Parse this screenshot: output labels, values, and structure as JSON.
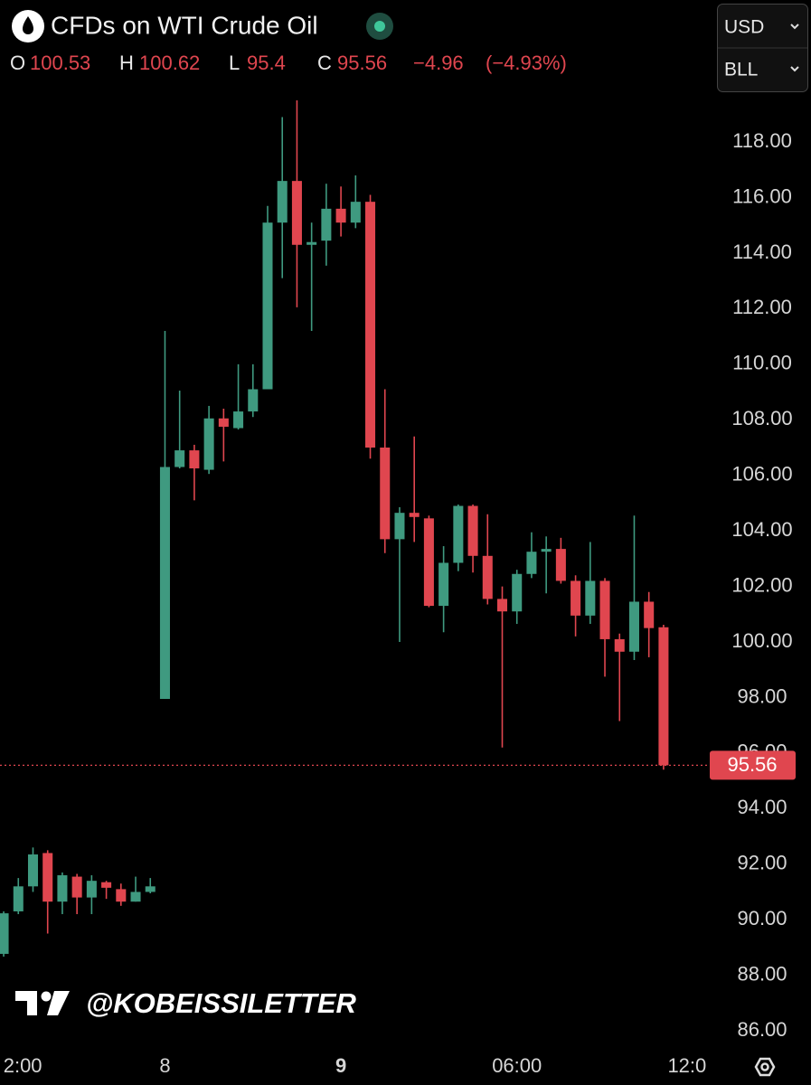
{
  "chart_data": {
    "type": "candlestick",
    "title": "CFDs on WTI Crude Oil",
    "ohlc_labels": [
      "O",
      "H",
      "L",
      "C"
    ],
    "change": {
      "value": -4.96,
      "label": "−4.96"
    },
    "change_pct": {
      "value": -4.93,
      "label": "(−4.93%)"
    },
    "currency": "USD",
    "unit": "BLL",
    "watermark": "@KOBEISSILETTER",
    "up_color": "#3f9a80",
    "down_color": "#e0464f",
    "open": [
      88.77,
      90.3,
      91.2,
      92.4,
      90.65,
      91.55,
      90.8,
      91.35,
      91.1,
      90.65,
      91.0,
      97.95,
      106.3,
      106.9,
      106.2,
      108.05,
      107.7,
      108.3,
      109.1,
      115.1,
      116.6,
      114.3,
      114.45,
      115.6,
      115.1,
      115.85,
      107.0,
      103.7,
      104.65,
      104.45,
      101.3,
      102.85,
      104.9,
      103.1,
      101.55,
      101.1,
      102.45,
      103.25,
      103.35,
      102.2,
      100.95,
      102.2,
      100.1,
      99.65,
      101.45,
      100.53
    ],
    "high": [
      90.3,
      91.5,
      92.6,
      92.5,
      91.7,
      91.65,
      91.6,
      91.4,
      91.3,
      91.55,
      91.5,
      111.2,
      109.05,
      107.1,
      108.5,
      108.4,
      110.0,
      110.0,
      115.7,
      118.9,
      119.5,
      115.1,
      116.5,
      116.4,
      116.8,
      116.1,
      109.1,
      104.85,
      107.4,
      104.55,
      103.45,
      104.95,
      104.95,
      104.6,
      102.0,
      102.6,
      103.95,
      103.8,
      103.75,
      102.4,
      103.6,
      102.3,
      100.3,
      104.55,
      101.8,
      100.62
    ],
    "low": [
      88.67,
      90.2,
      91.0,
      89.5,
      90.2,
      90.2,
      90.2,
      90.75,
      90.5,
      90.65,
      90.95,
      97.95,
      106.25,
      105.1,
      106.05,
      106.5,
      107.65,
      108.1,
      109.1,
      113.1,
      112.05,
      111.2,
      113.55,
      114.6,
      114.9,
      106.6,
      103.2,
      100.0,
      103.6,
      101.25,
      100.35,
      102.55,
      102.5,
      101.35,
      96.2,
      100.65,
      102.3,
      101.75,
      102.1,
      100.2,
      100.65,
      98.75,
      97.15,
      99.35,
      99.45,
      95.4
    ],
    "close": [
      90.23,
      91.2,
      92.35,
      90.65,
      91.6,
      90.8,
      91.4,
      91.15,
      90.65,
      91.0,
      91.2,
      106.3,
      106.9,
      106.25,
      108.05,
      107.75,
      108.3,
      109.1,
      115.1,
      116.6,
      114.3,
      114.4,
      115.6,
      115.1,
      115.85,
      107.0,
      103.7,
      104.65,
      104.5,
      101.3,
      102.85,
      104.9,
      103.1,
      101.55,
      101.1,
      102.45,
      103.25,
      103.35,
      102.2,
      100.95,
      102.2,
      100.1,
      99.65,
      101.45,
      100.5,
      95.56
    ],
    "xlim": [
      -0.25,
      48.15
    ],
    "xticks": [
      {
        "value": 1.3,
        "label": "2:00"
      },
      {
        "value": 11,
        "label": "8"
      },
      {
        "value": 23,
        "label": "9"
      },
      {
        "value": 35,
        "label": "06:00"
      },
      {
        "value": 46.6,
        "label": "12:0"
      }
    ],
    "ylim": [
      85.35,
      119.86
    ],
    "yticks": [
      {
        "value": 86,
        "label": "86.00"
      },
      {
        "value": 88,
        "label": "88.00"
      },
      {
        "value": 90,
        "label": "90.00"
      },
      {
        "value": 92,
        "label": "92.00"
      },
      {
        "value": 94,
        "label": "94.00"
      },
      {
        "value": 96,
        "label": "96.00"
      },
      {
        "value": 98,
        "label": "98.00"
      },
      {
        "value": 100,
        "label": "100.00"
      },
      {
        "value": 102,
        "label": "102.00"
      },
      {
        "value": 104,
        "label": "104.00"
      },
      {
        "value": 106,
        "label": "106.00"
      },
      {
        "value": 108,
        "label": "108.00"
      },
      {
        "value": 110,
        "label": "110.00"
      },
      {
        "value": 112,
        "label": "112.00"
      },
      {
        "value": 114,
        "label": "114.00"
      },
      {
        "value": 116,
        "label": "116.00"
      },
      {
        "value": 118,
        "label": "118.00"
      }
    ]
  }
}
